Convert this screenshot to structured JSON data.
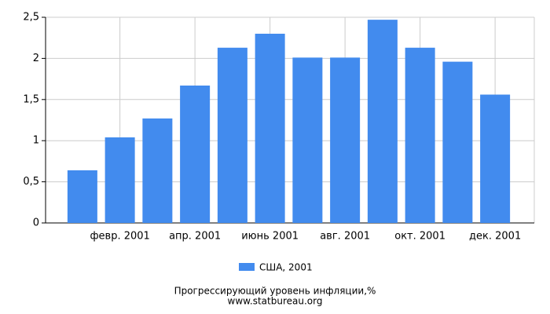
{
  "chart_data": {
    "type": "bar",
    "title": "Прогрессирующий уровень инфляции,%",
    "source": "www.statbureau.org",
    "categories": [
      null,
      "февр. 2001",
      null,
      "апр. 2001",
      null,
      "июнь 2001",
      null,
      "авг. 2001",
      null,
      "окт. 2001",
      null,
      "дек. 2001"
    ],
    "series": [
      {
        "name": "США, 2001",
        "color": "#428bee",
        "values": [
          0.64,
          1.04,
          1.27,
          1.67,
          2.13,
          2.3,
          2.01,
          2.01,
          2.47,
          2.13,
          1.96,
          1.56
        ]
      }
    ],
    "ylim": [
      0,
      2.5
    ],
    "yticks": [
      0,
      {
        "value": 0.5,
        "label": "0,5"
      },
      1,
      {
        "value": 1.5,
        "label": "1,5"
      },
      2,
      {
        "value": 2.5,
        "label": "2,5"
      }
    ],
    "grid": true
  }
}
